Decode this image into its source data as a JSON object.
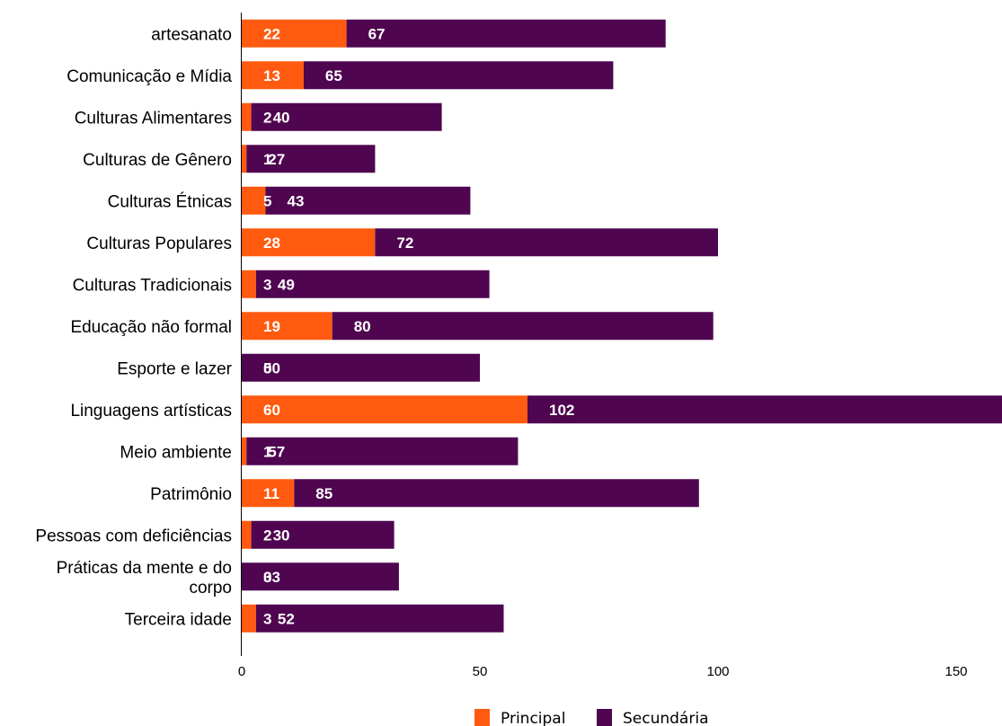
{
  "chart_data": {
    "type": "bar",
    "orientation": "horizontal",
    "stacked": true,
    "categories": [
      "artesanato",
      "Comunicação e Mídia",
      "Culturas Alimentares",
      "Culturas de Gênero",
      "Culturas Étnicas",
      "Culturas Populares",
      "Culturas Tradicionais",
      "Educação não formal",
      "Esporte e lazer",
      "Linguagens artísticas",
      "Meio ambiente",
      "Patrimônio",
      "Pessoas com deficiências",
      "Práticas da mente e do corpo",
      "Terceira idade"
    ],
    "category_lines": {
      "Práticas da mente e do corpo": [
        "Práticas da mente e do",
        "corpo"
      ]
    },
    "series": [
      {
        "name": "Principal",
        "color": "#ff5a0f",
        "values": [
          22,
          13,
          2,
          1,
          5,
          28,
          3,
          19,
          0,
          60,
          1,
          11,
          2,
          0,
          3
        ]
      },
      {
        "name": "Secundária",
        "color": "#4f0550",
        "values": [
          67,
          65,
          40,
          27,
          43,
          72,
          49,
          80,
          50,
          102,
          57,
          85,
          30,
          33,
          52
        ]
      }
    ],
    "xticks": [
      "0",
      "50",
      "100",
      "150"
    ],
    "xlim": [
      0,
      160
    ],
    "grid": false,
    "legend": "bottom",
    "title": "",
    "xlabel": "",
    "ylabel": ""
  }
}
